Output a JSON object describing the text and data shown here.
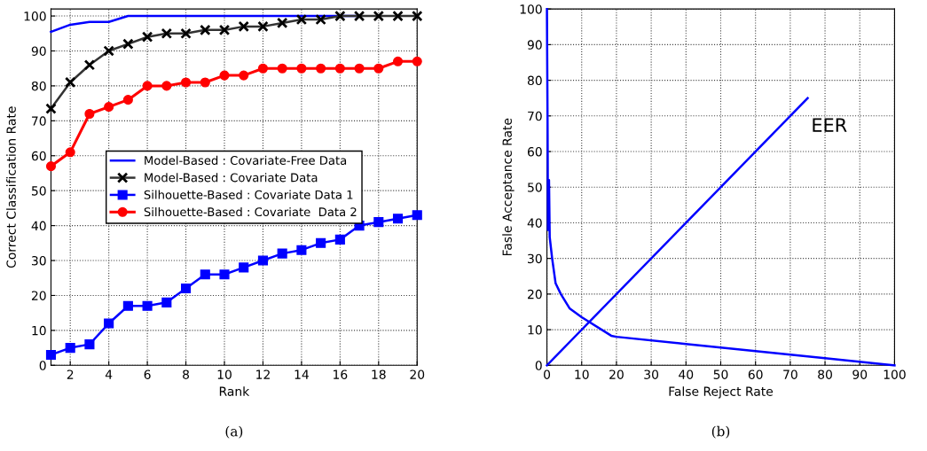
{
  "chart_data": [
    {
      "type": "line",
      "xlabel": "Rank",
      "ylabel": "Correct Classification Rate",
      "x": [
        1,
        2,
        3,
        4,
        5,
        6,
        7,
        8,
        9,
        10,
        11,
        12,
        13,
        14,
        15,
        16,
        17,
        18,
        19,
        20
      ],
      "xlim": [
        1,
        20
      ],
      "ylim": [
        0,
        102
      ],
      "xticks": [
        2,
        4,
        6,
        8,
        10,
        12,
        14,
        16,
        18,
        20
      ],
      "yticks": [
        0,
        10,
        20,
        30,
        40,
        50,
        60,
        70,
        80,
        90,
        100
      ],
      "grid": true,
      "legend": "center",
      "line_style": "solid",
      "annotations": [
        "(a)"
      ],
      "series": [
        {
          "name": "Model-Based : Covariate-Free Data",
          "color": "#0000ff",
          "marker": "none",
          "values": [
            95.5,
            97.5,
            98.3,
            98.3,
            100,
            100,
            100,
            100,
            100,
            100,
            100,
            100,
            100,
            100,
            100,
            100,
            100,
            null,
            null,
            null
          ]
        },
        {
          "name": "Model-Based : Covariate Data",
          "color": "#333333",
          "marker": "cross",
          "values": [
            73.5,
            81,
            86,
            90,
            92,
            94,
            95,
            95,
            96,
            96,
            97,
            97,
            98,
            99,
            99,
            100,
            100,
            100,
            100,
            100
          ]
        },
        {
          "name": "Silhouette-Based : Covariate Data 1",
          "color": "#0000ff",
          "marker": "square",
          "values": [
            3,
            5,
            6,
            12,
            17,
            17,
            18,
            22,
            26,
            26,
            28,
            30,
            32,
            33,
            35,
            36,
            40,
            41,
            42,
            43
          ]
        },
        {
          "name": "Silhouette-Based : Covariate  Data 2",
          "color": "#ff0000",
          "marker": "circle",
          "values": [
            57,
            61,
            72,
            74,
            76,
            80,
            80,
            81,
            81,
            83,
            83,
            85,
            85,
            85,
            85,
            85,
            85,
            85,
            87,
            87
          ]
        }
      ]
    },
    {
      "type": "line",
      "xlabel": "False Reject Rate",
      "ylabel": "Fasle Acceptance Rate",
      "xlim": [
        0,
        100
      ],
      "ylim": [
        0,
        100
      ],
      "xticks": [
        0,
        10,
        20,
        30,
        40,
        50,
        60,
        70,
        80,
        90,
        100
      ],
      "yticks": [
        0,
        10,
        20,
        30,
        40,
        50,
        60,
        70,
        80,
        90,
        100
      ],
      "grid": true,
      "legend": false,
      "line_style": "solid",
      "annotations": [
        "EER",
        "(b)"
      ],
      "series": [
        {
          "color": "#0000ff",
          "x": [
            0,
            0.2,
            0.3,
            0.6,
            0.8,
            1.5,
            2.5,
            4,
            6.5,
            10,
            18.5,
            20,
            40,
            60,
            80,
            100
          ],
          "values": [
            100,
            65,
            38,
            52,
            36,
            30,
            23,
            20,
            16,
            13.5,
            8.3,
            8,
            6,
            4,
            2,
            0
          ]
        },
        {
          "color": "#0000ff",
          "x": [
            0,
            75
          ],
          "values": [
            0,
            75
          ]
        }
      ]
    }
  ]
}
